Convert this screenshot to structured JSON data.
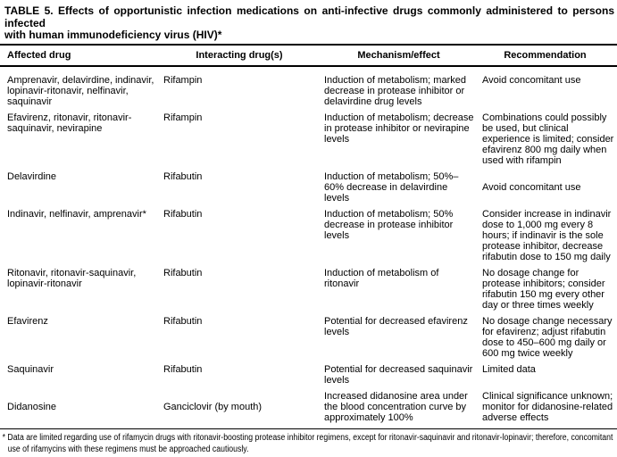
{
  "title": {
    "line1": "TABLE 5. Effects of opportunistic infection medications on anti-infective drugs commonly administered to persons infected",
    "line2": "with human immunodeficiency virus (HIV)*"
  },
  "columns": [
    "Affected drug",
    "Interacting drug(s)",
    "Mechanism/effect",
    "Recommendation"
  ],
  "rows": [
    {
      "affected": "Amprenavir, delavirdine, indinavir, lopinavir-ritonavir, nelfinavir, saquinavir",
      "interacting": "Rifampin",
      "mechanism": "Induction of metabolism; marked decrease in protease inhibitor or delavirdine drug levels",
      "recommendation": "Avoid concomitant use"
    },
    {
      "affected": "Efavirenz, ritonavir, ritonavir-saquinavir, nevirapine",
      "interacting": "Rifampin",
      "mechanism": "Induction of metabolism; decrease in protease inhibitor or nevirapine levels",
      "recommendation": "Combinations could possibly be used, but clinical experience is limited; consider efavirenz 800 mg daily when used with rifampin"
    },
    {
      "affected": "Delavirdine",
      "interacting": "Rifabutin",
      "mechanism": "Induction of metabolism; 50%–60% decrease in delavirdine levels",
      "recommendation": "Avoid concomitant use"
    },
    {
      "affected": "Indinavir, nelfinavir, amprenavir*",
      "interacting": "Rifabutin",
      "mechanism": "Induction of metabolism; 50% decrease in protease inhibitor levels",
      "recommendation": "Consider increase in indinavir dose to 1,000 mg every 8 hours; if indinavir is the sole protease inhibitor, decrease rifabutin dose to 150 mg daily"
    },
    {
      "affected": "Ritonavir, ritonavir-saquinavir, lopinavir-ritonavir",
      "interacting": "Rifabutin",
      "mechanism": "Induction of metabolism of ritonavir",
      "recommendation": "No dosage change for protease inhibitors; consider rifabutin 150 mg every other day or three times weekly"
    },
    {
      "affected": "Efavirenz",
      "interacting": "Rifabutin",
      "mechanism": "Potential for decreased efavirenz levels",
      "recommendation": "No dosage change necessary for efavirenz; adjust rifabutin dose to 450–600 mg daily or 600 mg twice weekly"
    },
    {
      "affected": "Saquinavir",
      "interacting": "Rifabutin",
      "mechanism": "Potential for decreased saquinavir levels",
      "recommendation": "Limited data"
    },
    {
      "affected": "Didanosine",
      "interacting": "Ganciclovir (by mouth)",
      "mechanism": "Increased didanosine area under the blood concentration curve by approximately 100%",
      "recommendation": "Clinical significance unknown; monitor for didanosine-related adverse effects"
    }
  ],
  "footnote": {
    "marker": "*",
    "text": "Data are limited regarding use of rifamycin drugs with ritonavir-boosting protease inhibitor regimens, except for ritonavir-saquinavir and ritonavir-lopinavir; therefore, concomitant use of rifamycins with these regimens must be approached cautiously."
  }
}
